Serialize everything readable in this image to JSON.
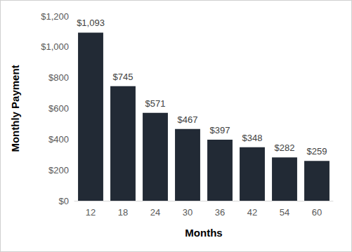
{
  "chart_data": {
    "type": "bar",
    "x_label": "Months",
    "y_label": "Monthly Payment",
    "categories": [
      "12",
      "18",
      "24",
      "30",
      "36",
      "42",
      "54",
      "60"
    ],
    "values": [
      1093,
      745,
      571,
      467,
      397,
      348,
      282,
      259
    ],
    "value_labels": [
      "$1,093",
      "$745",
      "$571",
      "$467",
      "$397",
      "$348",
      "$282",
      "$259"
    ],
    "color": "#222a35",
    "ylim": [
      0,
      1200
    ],
    "yticks": [
      {
        "value": 0,
        "label": "$0"
      },
      {
        "value": 200,
        "label": "$200"
      },
      {
        "value": 400,
        "label": "$400"
      },
      {
        "value": 600,
        "label": "$600"
      },
      {
        "value": 800,
        "label": "$800"
      },
      {
        "value": 1000,
        "label": "$1,000"
      },
      {
        "value": 1200,
        "label": "$1,200"
      }
    ],
    "grid": false,
    "data_labels": true
  }
}
